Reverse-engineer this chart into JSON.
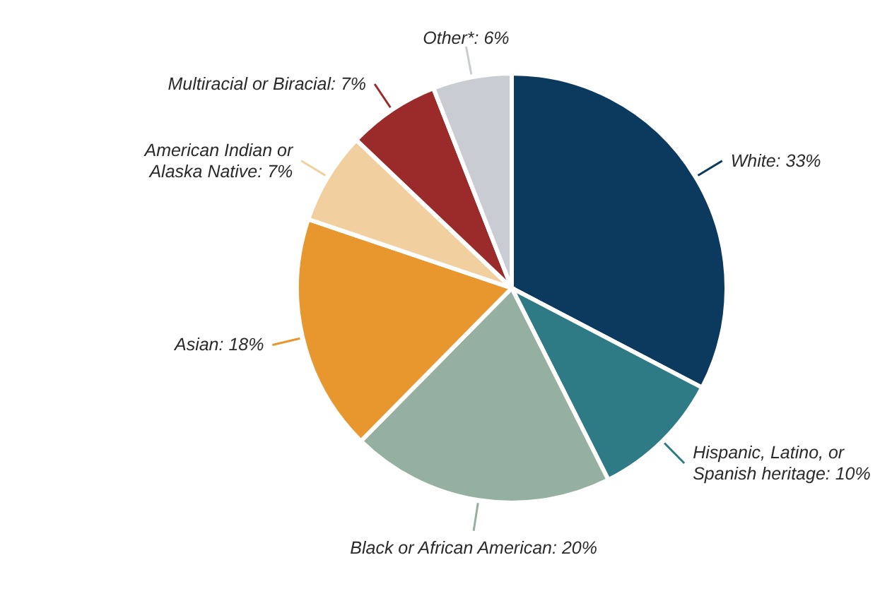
{
  "chart_data": {
    "type": "pie",
    "categories": [
      "White: 33%",
      "Hispanic, Latino, or\nSpanish heritage: 10%",
      "Black or African American: 20%",
      "Asian: 18%",
      "American Indian or\nAlaska Native: 7%",
      "Multiracial or Biracial: 7%",
      "Other*: 6%"
    ],
    "values": [
      33,
      10,
      20,
      18,
      7,
      7,
      6
    ],
    "colors": [
      "#0b3a5e",
      "#2e7b86",
      "#95b0a0",
      "#e8962e",
      "#f2cf9f",
      "#9b2a2a",
      "#c9ccd3"
    ]
  }
}
